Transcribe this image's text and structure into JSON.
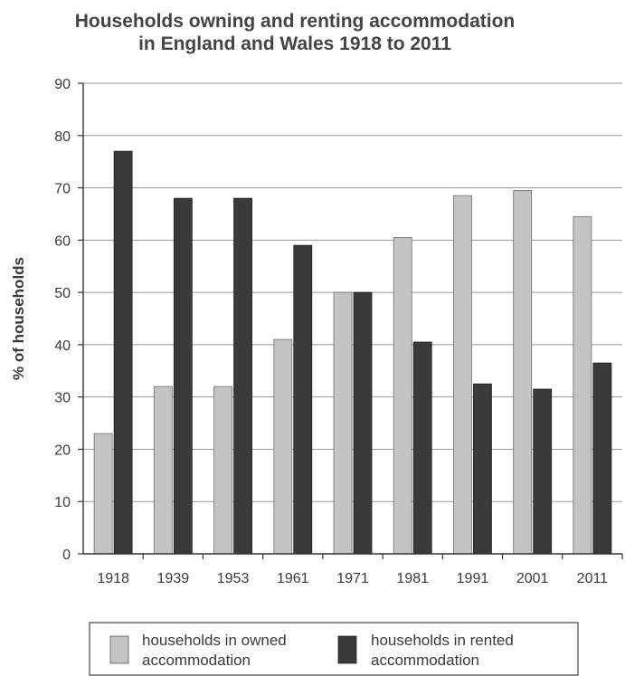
{
  "chart_data": {
    "type": "bar",
    "title": "Households owning and renting accommodation in England and Wales 1918 to 2011",
    "title_lines": [
      "Households owning and renting accommodation",
      "in England and Wales 1918 to 2011"
    ],
    "xlabel": "",
    "ylabel": "% of households",
    "ylim": [
      0,
      90
    ],
    "yticks": [
      "0",
      "10",
      "20",
      "30",
      "40",
      "50",
      "60",
      "70",
      "80",
      "90"
    ],
    "categories": [
      "1918",
      "1939",
      "1953",
      "1961",
      "1971",
      "1981",
      "1991",
      "2001",
      "2011"
    ],
    "series": [
      {
        "name": "households in owned accommodation",
        "legend_lines": [
          "households in owned",
          "accommodation"
        ],
        "color": "#c4c4c4",
        "values": [
          23,
          32,
          32,
          41,
          50,
          60.5,
          68.5,
          69.5,
          64.5
        ]
      },
      {
        "name": "households in rented accommodation",
        "legend_lines": [
          "households in rented",
          "accommodation"
        ],
        "color": "#3a3a3a",
        "values": [
          77,
          68,
          68,
          59,
          50,
          40.5,
          32.5,
          31.5,
          36.5
        ]
      }
    ],
    "grid": true,
    "legend_position": "bottom"
  }
}
